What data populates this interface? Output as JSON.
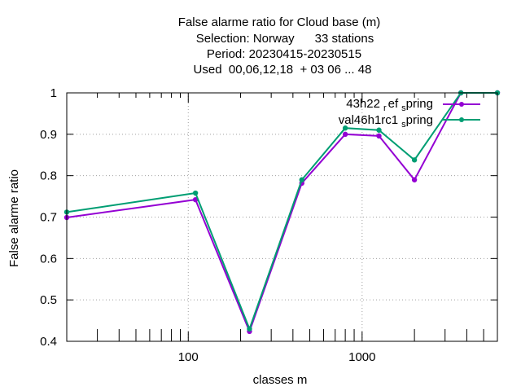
{
  "chart_data": {
    "type": "line",
    "title_lines": [
      "False alarme ratio  for Cloud base (m)",
      "Selection: Norway      33 stations",
      "Period: 20230415-20230515",
      "Used  00,06,12,18  + 03 06 ... 48"
    ],
    "xlabel": "classes m",
    "ylabel": "False alarme ratio",
    "x_scale": "log",
    "xlim": [
      20,
      6000
    ],
    "ylim": [
      0.4,
      1.0
    ],
    "x_ticks": [
      {
        "value": 100,
        "label": "100"
      },
      {
        "value": 1000,
        "label": "1000"
      }
    ],
    "y_ticks": [
      {
        "value": 0.4,
        "label": "0.4"
      },
      {
        "value": 0.5,
        "label": "0.5"
      },
      {
        "value": 0.6,
        "label": "0.6"
      },
      {
        "value": 0.7,
        "label": "0.7"
      },
      {
        "value": 0.8,
        "label": "0.8"
      },
      {
        "value": 0.9,
        "label": "0.9"
      },
      {
        "value": 1.0,
        "label": "1"
      }
    ],
    "grid": true,
    "legend_position": "top-right",
    "series": [
      {
        "name_main": "43h22",
        "name_sub1": "r",
        "name_mid": "ef",
        "name_sub2": "s",
        "name_end": "pring",
        "color": "#9400d3",
        "points": [
          {
            "x": 20,
            "y": 0.699
          },
          {
            "x": 110,
            "y": 0.742
          },
          {
            "x": 225,
            "y": 0.424
          },
          {
            "x": 450,
            "y": 0.782
          },
          {
            "x": 800,
            "y": 0.9
          },
          {
            "x": 1250,
            "y": 0.896
          },
          {
            "x": 2000,
            "y": 0.79
          },
          {
            "x": 3700,
            "y": 1.0
          },
          {
            "x": 6000,
            "y": 1.0
          }
        ]
      },
      {
        "name_main": "val46h1rc1",
        "name_sub1": "",
        "name_mid": "",
        "name_sub2": "s",
        "name_end": "pring",
        "color": "#009e73",
        "points": [
          {
            "x": 20,
            "y": 0.712
          },
          {
            "x": 110,
            "y": 0.758
          },
          {
            "x": 225,
            "y": 0.43
          },
          {
            "x": 450,
            "y": 0.79
          },
          {
            "x": 800,
            "y": 0.915
          },
          {
            "x": 1250,
            "y": 0.91
          },
          {
            "x": 2000,
            "y": 0.838
          },
          {
            "x": 3700,
            "y": 1.0
          },
          {
            "x": 6000,
            "y": 1.0
          }
        ]
      }
    ]
  }
}
